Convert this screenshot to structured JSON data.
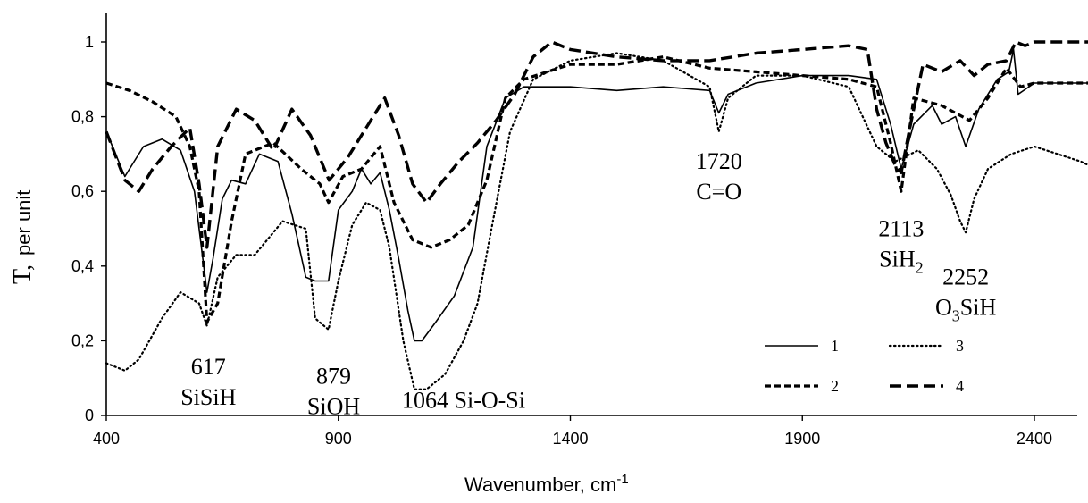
{
  "chart_data": {
    "type": "line",
    "title": "",
    "xlabel": "Wavenumber, cm",
    "xlabel_sup": "-1",
    "ylabel_symbol": "T,",
    "ylabel_unit": "per unit",
    "xlim": [
      400,
      2560
    ],
    "ylim": [
      0,
      1.05
    ],
    "grid": false,
    "legend_position": "bottom-right",
    "x_ticks": [
      {
        "value": 400,
        "label": "400"
      },
      {
        "value": 900,
        "label": "900"
      },
      {
        "value": 1400,
        "label": "1400"
      },
      {
        "value": 1900,
        "label": "1900"
      },
      {
        "value": 2400,
        "label": "2400"
      }
    ],
    "y_ticks": [
      {
        "value": 0,
        "label": "0"
      },
      {
        "value": 0.2,
        "label": "0,2"
      },
      {
        "value": 0.4,
        "label": "0,4"
      },
      {
        "value": 0.6,
        "label": "0,6"
      },
      {
        "value": 0.8,
        "label": "0,8"
      },
      {
        "value": 1,
        "label": "1"
      }
    ],
    "annotations": [
      {
        "lines": [
          "617",
          "SiSiH"
        ],
        "x": 620,
        "y": 0.11
      },
      {
        "lines": [
          "879",
          "SiOH"
        ],
        "x": 890,
        "y": 0.085
      },
      {
        "lines": [
          "1064   Si-O-Si"
        ],
        "x": 1170,
        "y": 0.02
      },
      {
        "lines": [
          "1720",
          "C=O"
        ],
        "x": 1720,
        "y": 0.66
      },
      {
        "lines": [
          "2113",
          "SiH2"
        ],
        "x": 2113,
        "y": 0.48
      },
      {
        "lines": [
          "2252",
          "O3SiH"
        ],
        "x": 2252,
        "y": 0.35
      }
    ],
    "series": [
      {
        "name": "1",
        "style": "solid",
        "x": [
          400,
          440,
          480,
          520,
          560,
          590,
          605,
          617,
          630,
          650,
          670,
          700,
          730,
          770,
          800,
          830,
          850,
          879,
          900,
          930,
          950,
          970,
          990,
          1010,
          1030,
          1050,
          1064,
          1080,
          1110,
          1150,
          1190,
          1220,
          1260,
          1300,
          1400,
          1500,
          1600,
          1700,
          1720,
          1740,
          1800,
          1900,
          2000,
          2060,
          2090,
          2113,
          2140,
          2180,
          2200,
          2230,
          2252,
          2280,
          2320,
          2345,
          2355,
          2365,
          2400,
          2550
        ],
        "y": [
          0.76,
          0.64,
          0.72,
          0.74,
          0.71,
          0.6,
          0.45,
          0.33,
          0.42,
          0.58,
          0.63,
          0.62,
          0.7,
          0.68,
          0.54,
          0.37,
          0.36,
          0.36,
          0.55,
          0.6,
          0.66,
          0.62,
          0.65,
          0.55,
          0.42,
          0.28,
          0.2,
          0.2,
          0.25,
          0.32,
          0.45,
          0.72,
          0.85,
          0.88,
          0.88,
          0.87,
          0.88,
          0.87,
          0.81,
          0.86,
          0.89,
          0.91,
          0.91,
          0.9,
          0.78,
          0.66,
          0.78,
          0.83,
          0.78,
          0.8,
          0.72,
          0.82,
          0.9,
          0.92,
          0.98,
          0.86,
          0.89,
          0.89
        ]
      },
      {
        "name": "2",
        "style": "dashed-fine",
        "x": [
          400,
          450,
          500,
          550,
          580,
          600,
          617,
          640,
          670,
          700,
          760,
          820,
          860,
          879,
          910,
          950,
          990,
          1020,
          1060,
          1100,
          1140,
          1180,
          1220,
          1260,
          1300,
          1400,
          1500,
          1600,
          1700,
          1800,
          1900,
          2000,
          2060,
          2090,
          2113,
          2140,
          2200,
          2260,
          2300,
          2340,
          2370,
          2400,
          2550
        ],
        "y": [
          0.89,
          0.87,
          0.84,
          0.8,
          0.72,
          0.6,
          0.25,
          0.3,
          0.52,
          0.7,
          0.73,
          0.66,
          0.62,
          0.57,
          0.64,
          0.66,
          0.72,
          0.57,
          0.47,
          0.45,
          0.47,
          0.51,
          0.63,
          0.85,
          0.9,
          0.94,
          0.94,
          0.96,
          0.93,
          0.92,
          0.91,
          0.9,
          0.88,
          0.73,
          0.6,
          0.85,
          0.83,
          0.79,
          0.85,
          0.93,
          0.88,
          0.89,
          0.89
        ]
      },
      {
        "name": "3",
        "style": "dotted",
        "x": [
          400,
          440,
          470,
          520,
          560,
          600,
          617,
          640,
          680,
          720,
          780,
          830,
          850,
          879,
          900,
          930,
          960,
          990,
          1010,
          1040,
          1064,
          1090,
          1130,
          1170,
          1200,
          1230,
          1270,
          1320,
          1400,
          1500,
          1600,
          1700,
          1720,
          1740,
          1800,
          1900,
          2000,
          2060,
          2100,
          2150,
          2190,
          2220,
          2240,
          2252,
          2270,
          2300,
          2350,
          2400,
          2450,
          2500,
          2550
        ],
        "y": [
          0.14,
          0.12,
          0.15,
          0.26,
          0.33,
          0.3,
          0.24,
          0.37,
          0.43,
          0.43,
          0.52,
          0.5,
          0.26,
          0.23,
          0.36,
          0.51,
          0.57,
          0.55,
          0.45,
          0.2,
          0.07,
          0.07,
          0.11,
          0.2,
          0.3,
          0.5,
          0.76,
          0.9,
          0.95,
          0.97,
          0.95,
          0.88,
          0.76,
          0.85,
          0.91,
          0.91,
          0.88,
          0.72,
          0.68,
          0.71,
          0.66,
          0.59,
          0.52,
          0.49,
          0.58,
          0.66,
          0.7,
          0.72,
          0.7,
          0.68,
          0.65
        ]
      },
      {
        "name": "4",
        "style": "dashed-long",
        "x": [
          400,
          440,
          470,
          500,
          540,
          580,
          600,
          617,
          640,
          680,
          720,
          760,
          800,
          840,
          880,
          920,
          960,
          1000,
          1030,
          1060,
          1090,
          1120,
          1160,
          1200,
          1240,
          1280,
          1320,
          1360,
          1400,
          1500,
          1600,
          1700,
          1800,
          1900,
          2000,
          2040,
          2060,
          2080,
          2100,
          2113,
          2130,
          2160,
          2200,
          2240,
          2270,
          2300,
          2340,
          2360,
          2380,
          2400,
          2550
        ],
        "y": [
          0.76,
          0.63,
          0.6,
          0.66,
          0.72,
          0.77,
          0.62,
          0.45,
          0.72,
          0.82,
          0.79,
          0.71,
          0.82,
          0.75,
          0.63,
          0.69,
          0.77,
          0.85,
          0.75,
          0.62,
          0.57,
          0.62,
          0.68,
          0.73,
          0.79,
          0.86,
          0.96,
          1.0,
          0.98,
          0.96,
          0.95,
          0.95,
          0.97,
          0.98,
          0.99,
          0.98,
          0.82,
          0.73,
          0.67,
          0.65,
          0.76,
          0.94,
          0.92,
          0.95,
          0.91,
          0.94,
          0.95,
          1.0,
          0.99,
          1.0,
          1.0
        ]
      }
    ]
  }
}
